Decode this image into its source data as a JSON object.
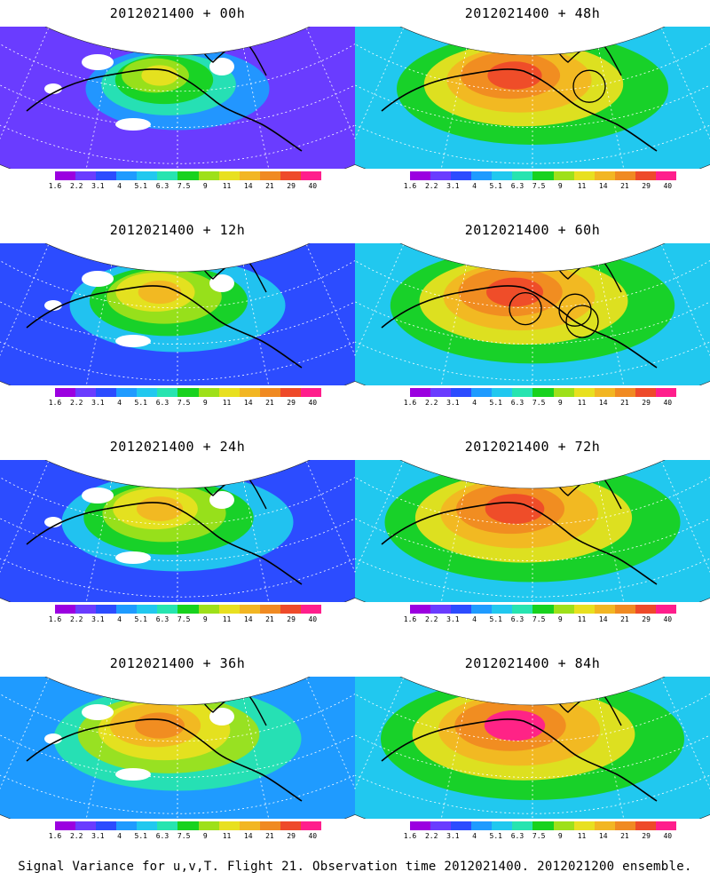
{
  "colorbar": {
    "labels": [
      "1.6",
      "2.2",
      "3.1",
      "4",
      "5.1",
      "6.3",
      "7.5",
      "9",
      "11",
      "14",
      "21",
      "29",
      "40"
    ],
    "colors": [
      "#9b00e0",
      "#6a3cff",
      "#2c4cff",
      "#1f9bff",
      "#21c8ef",
      "#27e4b0",
      "#18d21e",
      "#9ee01a",
      "#e8e020",
      "#f2b623",
      "#f08a22",
      "#ee4a2a",
      "#ff1e8c"
    ]
  },
  "panels": [
    {
      "title": "2012021400 + 00h",
      "level": 0.15,
      "holes": true,
      "circles": []
    },
    {
      "title": "2012021400 + 12h",
      "level": 0.35,
      "holes": true,
      "circles": []
    },
    {
      "title": "2012021400 + 24h",
      "level": 0.45,
      "holes": true,
      "circles": []
    },
    {
      "title": "2012021400 + 36h",
      "level": 0.55,
      "holes": true,
      "circles": []
    },
    {
      "title": "2012021400 + 48h",
      "level": 0.7,
      "holes": false,
      "circles": [
        [
          0.66,
          0.42
        ]
      ]
    },
    {
      "title": "2012021400 + 60h",
      "level": 0.78,
      "holes": false,
      "circles": [
        [
          0.48,
          0.46
        ],
        [
          0.62,
          0.47
        ],
        [
          0.64,
          0.55
        ]
      ]
    },
    {
      "title": "2012021400 + 72h",
      "level": 0.85,
      "holes": false,
      "circles": []
    },
    {
      "title": "2012021400 + 84h",
      "level": 0.9,
      "holes": false,
      "circles": []
    }
  ],
  "footer": "Signal Variance for u,v,T. Flight 21. Observation time 2012021400. 2012021200 ensemble."
}
